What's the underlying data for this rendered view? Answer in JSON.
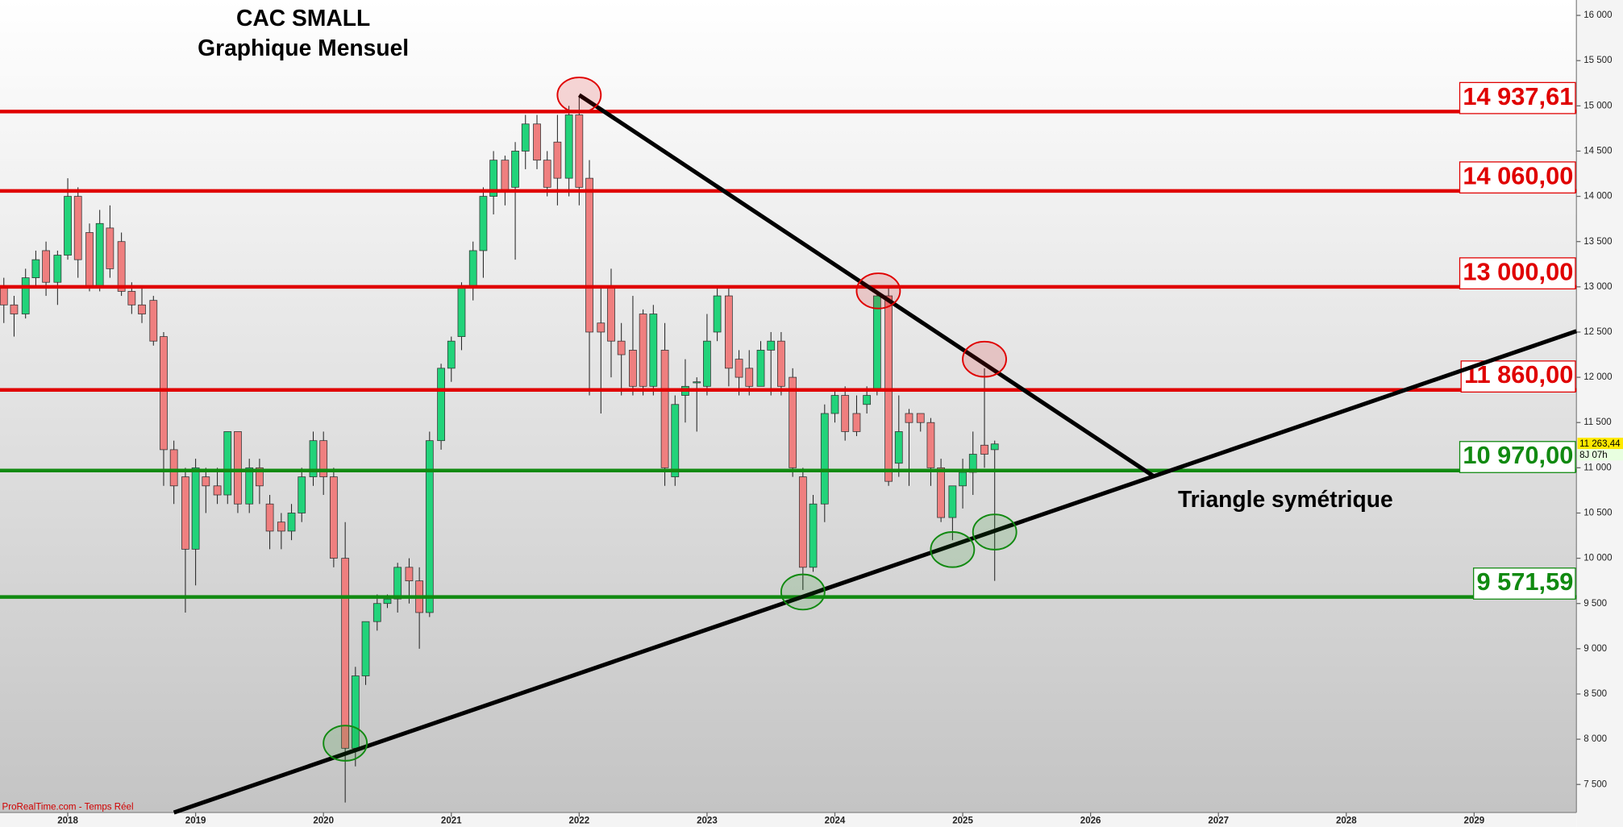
{
  "chart_data": {
    "type": "candlestick",
    "title": "CAC SMALL",
    "subtitle": "Graphique Mensuel",
    "x": [
      2017.5,
      2017.58,
      2017.67,
      2017.75,
      2017.83,
      2017.92,
      2018,
      2018.08,
      2018.17,
      2018.25,
      2018.33,
      2018.42,
      2018.5,
      2018.58,
      2018.67,
      2018.75,
      2018.83,
      2018.92,
      2019,
      2019.08,
      2019.17,
      2019.25,
      2019.33,
      2019.42,
      2019.5,
      2019.58,
      2019.67,
      2019.75,
      2019.83,
      2019.92,
      2020,
      2020.08,
      2020.17,
      2020.25,
      2020.33,
      2020.42,
      2020.5,
      2020.58,
      2020.67,
      2020.75,
      2020.83,
      2020.92,
      2021,
      2021.08,
      2021.17,
      2021.25,
      2021.33,
      2021.42,
      2021.5,
      2021.58,
      2021.67,
      2021.75,
      2021.83,
      2021.92,
      2022,
      2022.08,
      2022.17,
      2022.25,
      2022.33,
      2022.42,
      2022.5,
      2022.58,
      2022.67,
      2022.75,
      2022.83,
      2022.92,
      2023,
      2023.08,
      2023.17,
      2023.25,
      2023.33,
      2023.42,
      2023.5,
      2023.58,
      2023.67,
      2023.75,
      2023.83,
      2023.92,
      2024,
      2024.08,
      2024.17,
      2024.25,
      2024.33,
      2024.42,
      2024.5,
      2024.58,
      2024.67,
      2024.75,
      2024.83,
      2024.92,
      2025,
      2025.08,
      2025.17,
      2025.25
    ],
    "open": [
      13000,
      12800,
      12700,
      13100,
      13400,
      13050,
      13350,
      14000,
      13600,
      13000,
      13650,
      13500,
      12950,
      12800,
      12850,
      12450,
      11200,
      10900,
      10100,
      10900,
      10800,
      10700,
      11400,
      10600,
      11000,
      10600,
      10400,
      10300,
      10500,
      10900,
      11300,
      10900,
      10000,
      7900,
      8700,
      9300,
      9500,
      9550,
      9900,
      9750,
      9400,
      11300,
      12100,
      12450,
      13000,
      13400,
      14000,
      14400,
      14100,
      14500,
      14800,
      14400,
      14600,
      14200,
      14900,
      14200,
      12600,
      13000,
      12400,
      12300,
      12700,
      11900,
      12300,
      10900,
      11800,
      11950,
      11900,
      12500,
      12900,
      12200,
      12100,
      11900,
      12300,
      12400,
      12000,
      10900,
      9900,
      10600,
      11600,
      11800,
      11600,
      11700,
      11850,
      12900,
      11050,
      11600,
      11600,
      11500,
      11000,
      10450,
      10800,
      10950,
      11250,
      11200
    ],
    "high": [
      13100,
      12900,
      13200,
      13400,
      13500,
      13400,
      14200,
      14100,
      13700,
      13850,
      13900,
      13600,
      13050,
      13000,
      12900,
      12500,
      11300,
      11000,
      11100,
      11000,
      11000,
      11400,
      11400,
      11100,
      11100,
      10700,
      10500,
      10600,
      11000,
      11400,
      11400,
      11000,
      10400,
      8800,
      9300,
      9600,
      9600,
      9950,
      10000,
      9900,
      11400,
      12150,
      12450,
      13050,
      13500,
      14100,
      14500,
      14450,
      14600,
      14900,
      14900,
      14500,
      14900,
      15000,
      15100,
      14400,
      13000,
      13200,
      12600,
      12900,
      12750,
      12800,
      12600,
      11800,
      12200,
      12000,
      12700,
      13000,
      13000,
      12300,
      12300,
      12400,
      12500,
      12500,
      12100,
      11000,
      10700,
      11700,
      11850,
      11900,
      11800,
      11900,
      12950,
      13000,
      11800,
      11650,
      11600,
      11550,
      11100,
      10800,
      11100,
      11400,
      12100,
      11300
    ],
    "low": [
      12600,
      12450,
      12650,
      13000,
      12900,
      12800,
      13300,
      13100,
      12950,
      12950,
      13100,
      12900,
      12700,
      12600,
      12350,
      10800,
      10600,
      9400,
      9700,
      10500,
      10600,
      10600,
      10500,
      10500,
      10600,
      10100,
      10100,
      10200,
      10400,
      10800,
      10700,
      9900,
      7300,
      7700,
      8600,
      9200,
      9450,
      9400,
      9500,
      9000,
      9350,
      11200,
      11950,
      12300,
      12850,
      13100,
      13800,
      13900,
      13300,
      14300,
      14300,
      14000,
      13900,
      14000,
      13900,
      11800,
      11600,
      12000,
      11800,
      11800,
      11800,
      11800,
      10800,
      10800,
      11500,
      11400,
      11800,
      12400,
      11900,
      11800,
      11800,
      11900,
      11800,
      11800,
      10900,
      9650,
      9850,
      10400,
      11500,
      11300,
      11350,
      11600,
      11800,
      10800,
      10900,
      10800,
      11400,
      10800,
      10400,
      10200,
      10550,
      10700,
      11000,
      9750
    ],
    "close": [
      12800,
      12700,
      13100,
      13300,
      13050,
      13350,
      14000,
      13300,
      13000,
      13700,
      13200,
      12950,
      12800,
      12700,
      12400,
      11200,
      10800,
      10100,
      11000,
      10800,
      10700,
      11400,
      10600,
      11000,
      10800,
      10300,
      10300,
      10500,
      10900,
      11300,
      10900,
      10000,
      7900,
      8700,
      9300,
      9500,
      9550,
      9900,
      9750,
      9400,
      11300,
      12100,
      12400,
      13000,
      13400,
      14000,
      14400,
      14050,
      14500,
      14800,
      14400,
      14100,
      14200,
      14900,
      14100,
      12500,
      12500,
      12400,
      12250,
      11900,
      11900,
      12700,
      11000,
      11700,
      11900,
      11950,
      12400,
      12900,
      12100,
      12000,
      11900,
      12300,
      12400,
      11900,
      11000,
      9900,
      10600,
      11600,
      11800,
      11400,
      11400,
      11800,
      12900,
      10850,
      11400,
      11500,
      11500,
      11000,
      10450,
      10800,
      10950,
      11150,
      11150,
      11263.44
    ],
    "up_color": "#22d37a",
    "down_color": "#ef7f7f",
    "xlim": [
      2017.47,
      2029.8
    ],
    "ylim": [
      7190,
      16170
    ],
    "xticks": [
      2018,
      2019,
      2020,
      2021,
      2022,
      2023,
      2024,
      2025,
      2026,
      2027,
      2028,
      2029
    ],
    "yticks": [
      {
        "value": 7500,
        "label": "7 500"
      },
      {
        "value": 8000,
        "label": "8 000"
      },
      {
        "value": 8500,
        "label": "8 500"
      },
      {
        "value": 9000,
        "label": "9 000"
      },
      {
        "value": 9500,
        "label": "9 500"
      },
      {
        "value": 10000,
        "label": "10 000"
      },
      {
        "value": 10500,
        "label": "10 500"
      },
      {
        "value": 11000,
        "label": "11 000"
      },
      {
        "value": 11500,
        "label": "11 500"
      },
      {
        "value": 12000,
        "label": "12 000"
      },
      {
        "value": 12500,
        "label": "12 500"
      },
      {
        "value": 13000,
        "label": "13 000"
      },
      {
        "value": 13500,
        "label": "13 500"
      },
      {
        "value": 14000,
        "label": "14 000"
      },
      {
        "value": 14500,
        "label": "14 500"
      },
      {
        "value": 15000,
        "label": "15 000"
      },
      {
        "value": 15500,
        "label": "15 500"
      },
      {
        "value": 16000,
        "label": "16 000"
      }
    ],
    "levels": {
      "values": [
        14937.61,
        14060,
        13000,
        11860,
        10970,
        9571.59
      ],
      "value_labels": [
        "14 937,61",
        "14 060,00",
        "13 000,00",
        "11 860,00",
        "10 970,00",
        "9 571,59"
      ],
      "colors": [
        "#e00000",
        "#e00000",
        "#e00000",
        "#e00000",
        "#118a11",
        "#118a11"
      ]
    },
    "trendlines": [
      {
        "x": [
          2022.0,
          2026.49
        ],
        "y": [
          15120,
          10910
        ]
      },
      {
        "x": [
          2018.83,
          2029.8
        ],
        "y": [
          7190,
          12510
        ]
      }
    ],
    "highlights": [
      {
        "x": 2022.0,
        "y": 15120,
        "color": "#e00000"
      },
      {
        "x": 2024.34,
        "y": 12955,
        "color": "#e00000"
      },
      {
        "x": 2025.17,
        "y": 12200,
        "color": "#e00000"
      },
      {
        "x": 2020.17,
        "y": 7956,
        "color": "#118a11"
      },
      {
        "x": 2023.75,
        "y": 9627,
        "color": "#118a11"
      },
      {
        "x": 2024.92,
        "y": 10096,
        "color": "#118a11"
      },
      {
        "x": 2025.25,
        "y": 10290,
        "color": "#118a11"
      }
    ],
    "annotation": "Triangle symétrique",
    "source": "ProRealTime.com - Temps Réel",
    "last_price": 11263.44,
    "last_price_label": "11 263,44",
    "countdown": "8J 07h"
  }
}
